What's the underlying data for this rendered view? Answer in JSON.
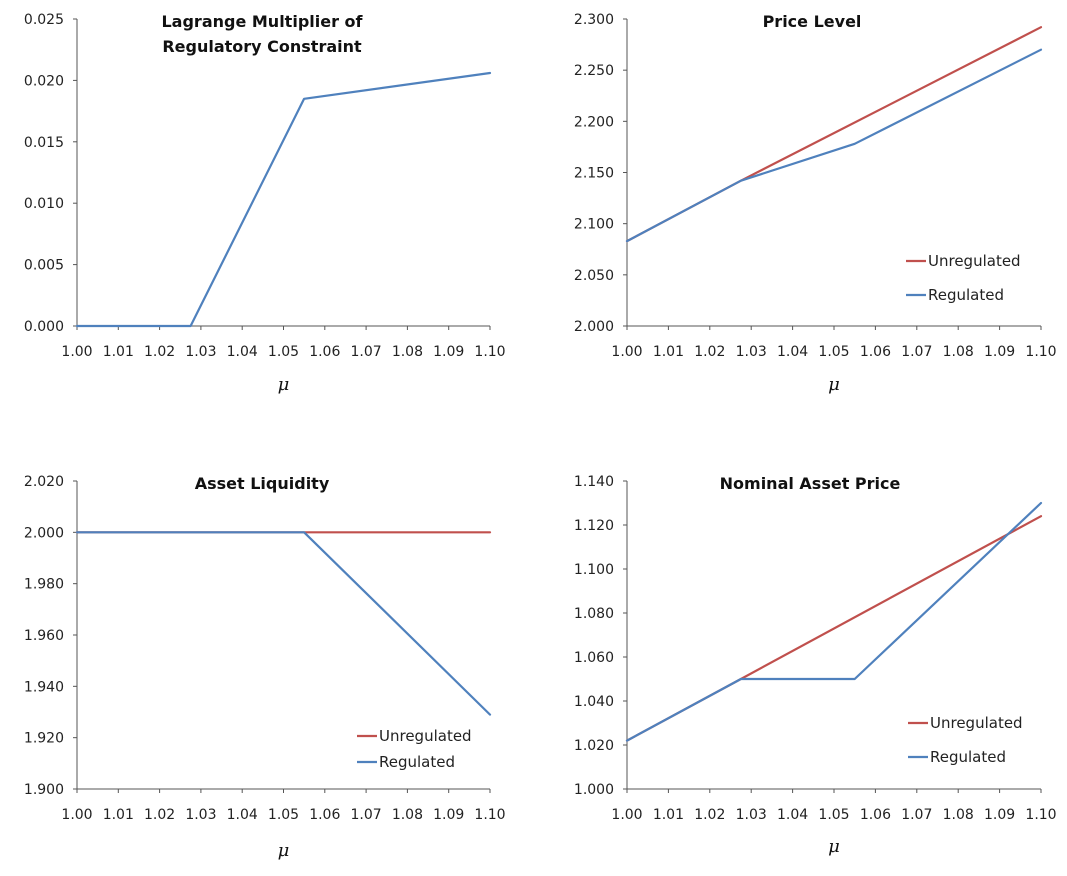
{
  "chart_data": [
    {
      "type": "line",
      "title": [
        "Lagrange Multiplier of",
        "Regulatory Constraint"
      ],
      "xlabel": "μ",
      "ylabel": "",
      "xlim": [
        1.0,
        1.1
      ],
      "ylim": [
        0.0,
        0.025
      ],
      "x_ticks": [
        "1.00",
        "1.01",
        "1.02",
        "1.03",
        "1.04",
        "1.05",
        "1.06",
        "1.07",
        "1.08",
        "1.09",
        "1.10"
      ],
      "y_ticks": [
        "0.000",
        "0.005",
        "0.010",
        "0.015",
        "0.020",
        "0.025"
      ],
      "grid": false,
      "legend": null,
      "series": [
        {
          "color": "#4f81bd",
          "x": [
            1.0,
            1.0275,
            1.055,
            1.1
          ],
          "y": [
            0.0,
            0.0,
            0.0185,
            0.0206
          ]
        }
      ]
    },
    {
      "type": "line",
      "title": [
        "Price Level"
      ],
      "xlabel": "μ",
      "ylabel": "",
      "xlim": [
        1.0,
        1.1
      ],
      "ylim": [
        2.0,
        2.3
      ],
      "x_ticks": [
        "1.00",
        "1.01",
        "1.02",
        "1.03",
        "1.04",
        "1.05",
        "1.06",
        "1.07",
        "1.08",
        "1.09",
        "1.10"
      ],
      "y_ticks": [
        "2.000",
        "2.050",
        "2.100",
        "2.150",
        "2.200",
        "2.250",
        "2.300"
      ],
      "grid": false,
      "legend": "bottom-right",
      "series": [
        {
          "name": "Unregulated",
          "color": "#c0504d",
          "x": [
            1.0,
            1.0275,
            1.1
          ],
          "y": [
            2.083,
            2.142,
            2.292
          ]
        },
        {
          "name": "Regulated",
          "color": "#4f81bd",
          "x": [
            1.0,
            1.0275,
            1.055,
            1.1
          ],
          "y": [
            2.083,
            2.142,
            2.178,
            2.27
          ]
        }
      ]
    },
    {
      "type": "line",
      "title": [
        "Asset Liquidity"
      ],
      "xlabel": "μ",
      "ylabel": "",
      "xlim": [
        1.0,
        1.1
      ],
      "ylim": [
        1.9,
        2.02
      ],
      "x_ticks": [
        "1.00",
        "1.01",
        "1.02",
        "1.03",
        "1.04",
        "1.05",
        "1.06",
        "1.07",
        "1.08",
        "1.09",
        "1.10"
      ],
      "y_ticks": [
        "1.900",
        "1.920",
        "1.940",
        "1.960",
        "1.980",
        "2.000",
        "2.020"
      ],
      "grid": false,
      "legend": "bottom-right",
      "series": [
        {
          "name": "Unregulated",
          "color": "#c0504d",
          "x": [
            1.0,
            1.1
          ],
          "y": [
            2.0,
            2.0
          ]
        },
        {
          "name": "Regulated",
          "color": "#4f81bd",
          "x": [
            1.0,
            1.055,
            1.1
          ],
          "y": [
            2.0,
            2.0,
            1.929
          ]
        }
      ]
    },
    {
      "type": "line",
      "title": [
        "Nominal Asset Price"
      ],
      "xlabel": "μ",
      "ylabel": "",
      "xlim": [
        1.0,
        1.1
      ],
      "ylim": [
        1.0,
        1.14
      ],
      "x_ticks": [
        "1.00",
        "1.01",
        "1.02",
        "1.03",
        "1.04",
        "1.05",
        "1.06",
        "1.07",
        "1.08",
        "1.09",
        "1.10"
      ],
      "y_ticks": [
        "1.000",
        "1.020",
        "1.040",
        "1.060",
        "1.080",
        "1.100",
        "1.120",
        "1.140"
      ],
      "grid": false,
      "legend": "bottom-right",
      "series": [
        {
          "name": "Unregulated",
          "color": "#c0504d",
          "x": [
            1.0,
            1.0275,
            1.1
          ],
          "y": [
            1.022,
            1.05,
            1.124
          ]
        },
        {
          "name": "Regulated",
          "color": "#4f81bd",
          "x": [
            1.0,
            1.0275,
            1.055,
            1.1
          ],
          "y": [
            1.022,
            1.05,
            1.05,
            1.13
          ]
        }
      ]
    }
  ]
}
